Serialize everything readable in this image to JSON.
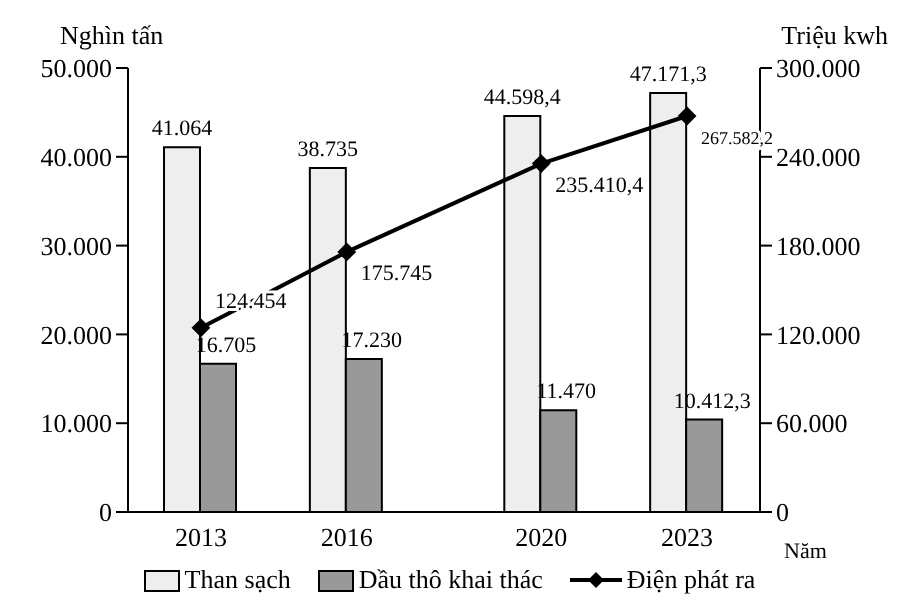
{
  "chart_data": {
    "type": "bar",
    "x": [
      2013,
      2016,
      2020,
      2023
    ],
    "xlim": [
      2011.5,
      2024.5
    ],
    "xticks": [
      2013,
      2016,
      2020,
      2023
    ],
    "xlabel": "Năm",
    "ylabel": "Nghìn tấn",
    "y2label": "Triệu kwh",
    "ylim": [
      0,
      50000
    ],
    "yticks": [
      0,
      {
        "value": 10000,
        "label": "10.000"
      },
      {
        "value": 20000,
        "label": "20.000"
      },
      {
        "value": 30000,
        "label": "30.000"
      },
      {
        "value": 40000,
        "label": "40.000"
      },
      {
        "value": 50000,
        "label": "50.000"
      }
    ],
    "y2lim": [
      0,
      300000
    ],
    "y2ticks": [
      0,
      {
        "value": 60000,
        "label": "60.000"
      },
      {
        "value": 120000,
        "label": "120.000"
      },
      {
        "value": 180000,
        "label": "180.000"
      },
      {
        "value": 240000,
        "label": "240.000"
      },
      {
        "value": 300000,
        "label": "300.000"
      }
    ],
    "series": [
      {
        "name": "Than sạch",
        "color": "#eeeeee",
        "values": [
          41064,
          38735,
          44598.4,
          47171.3
        ],
        "value_labels": [
          "41.064",
          "38.735",
          "44.598,4",
          "47.171,3"
        ]
      },
      {
        "name": "Dầu thô khai thác",
        "color": "#999999",
        "values": [
          16705,
          17230,
          11470,
          10412.3
        ],
        "value_labels": [
          "16.705",
          "17.230",
          "11.470",
          "10.412,3"
        ]
      },
      {
        "name": "Điện phát ra",
        "type": "line",
        "axis": "y2",
        "color": "#000000",
        "marker": "diamond",
        "values": [
          124454,
          175745,
          235410.4,
          267582.2
        ],
        "value_labels": [
          "124.454",
          "175.745",
          "235.410,4",
          "267.582,2"
        ]
      }
    ],
    "grid": false,
    "legend": "bottom"
  }
}
